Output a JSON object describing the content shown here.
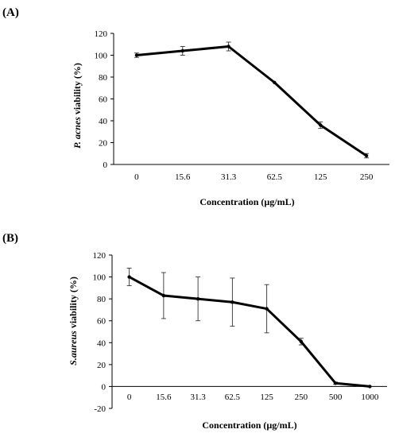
{
  "chart_data": [
    {
      "panel_label": "(A)",
      "type": "line",
      "categories": [
        "0",
        "15.6",
        "31.3",
        "62.5",
        "125",
        "250"
      ],
      "series": [
        {
          "values": [
            100,
            104,
            108,
            75,
            36,
            8
          ],
          "errors": [
            2,
            4,
            4,
            0,
            3,
            2
          ],
          "error_shown": [
            true,
            true,
            true,
            false,
            true,
            true
          ],
          "color": "#000000"
        }
      ],
      "ylabel_italic": "P. acnes",
      "ylabel_rest": " viability (%)",
      "xlabel": "Concentration (µg/mL)",
      "ylim": [
        0,
        120
      ],
      "yticks": [
        0,
        20,
        40,
        60,
        80,
        100,
        120
      ],
      "grid": false
    },
    {
      "panel_label": "(B)",
      "type": "line",
      "categories": [
        "0",
        "15.6",
        "31.3",
        "62.5",
        "125",
        "250",
        "500",
        "1000"
      ],
      "series": [
        {
          "values": [
            100,
            83,
            80,
            77,
            71,
            41,
            3,
            0
          ],
          "errors": [
            8,
            21,
            20,
            22,
            22,
            3,
            1,
            0
          ],
          "error_shown": [
            true,
            true,
            true,
            true,
            true,
            true,
            true,
            true
          ],
          "color": "#000000"
        }
      ],
      "ylabel_italic": "S.aureus",
      "ylabel_rest": "  viability (%)",
      "xlabel": "Concentration (µg/mL)",
      "ylim": [
        -20,
        120
      ],
      "yticks": [
        -20,
        0,
        20,
        40,
        60,
        80,
        100,
        120
      ],
      "grid": false
    }
  ]
}
